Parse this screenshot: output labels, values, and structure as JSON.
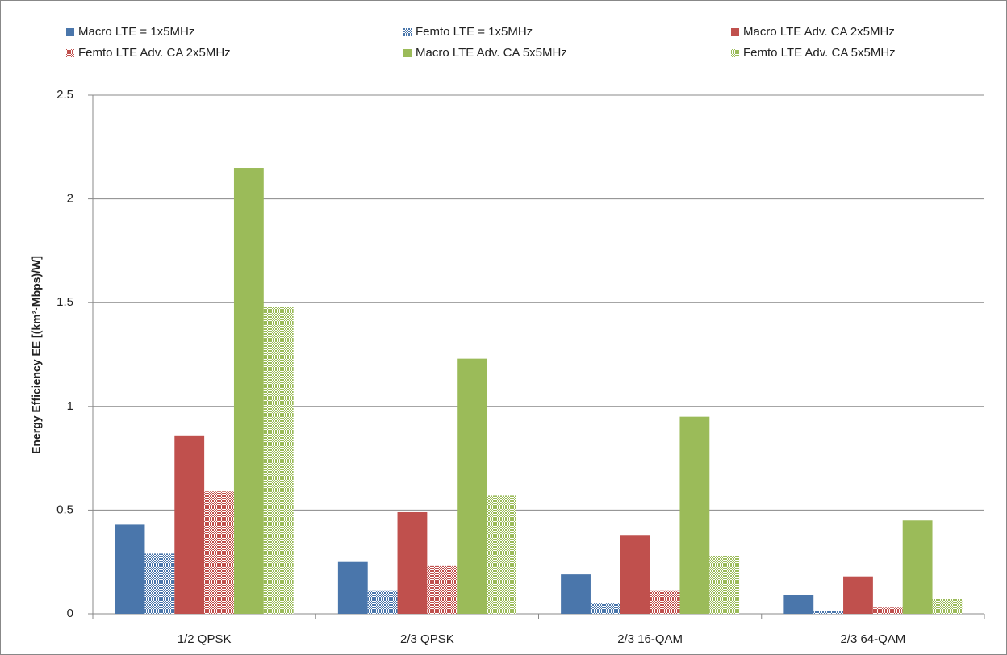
{
  "chart_data": {
    "type": "bar",
    "y_label": "Energy Efficiency EE [(km²·Mbps)/W]",
    "categories": [
      "1/2 QPSK",
      "2/3 QPSK",
      "2/3 16-QAM",
      "2/3 64-QAM"
    ],
    "series": [
      {
        "name": "Macro LTE = 1x5MHz",
        "color": "#4a76ab",
        "pattern": "solid",
        "values": [
          0.43,
          0.25,
          0.19,
          0.09
        ]
      },
      {
        "name": "Femto LTE = 1x5MHz",
        "color": "#4a76ab",
        "pattern": "dots",
        "values": [
          0.29,
          0.11,
          0.05,
          0.015
        ]
      },
      {
        "name": "Macro LTE Adv. CA 2x5MHz",
        "color": "#c0504d",
        "pattern": "solid",
        "values": [
          0.86,
          0.49,
          0.38,
          0.18
        ]
      },
      {
        "name": "Femto LTE Adv. CA 2x5MHz",
        "color": "#c0504d",
        "pattern": "dots",
        "values": [
          0.59,
          0.23,
          0.11,
          0.03
        ]
      },
      {
        "name": "Macro LTE Adv. CA 5x5MHz",
        "color": "#9bbb59",
        "pattern": "solid",
        "values": [
          2.15,
          1.23,
          0.95,
          0.45
        ]
      },
      {
        "name": "Femto LTE Adv. CA 5x5MHz",
        "color": "#9bbb59",
        "pattern": "dots",
        "values": [
          1.48,
          0.57,
          0.28,
          0.07
        ]
      }
    ],
    "ylim": [
      0,
      2.5
    ],
    "yticks": [
      0,
      0.5,
      1,
      1.5,
      2,
      2.5
    ],
    "grid": true
  }
}
